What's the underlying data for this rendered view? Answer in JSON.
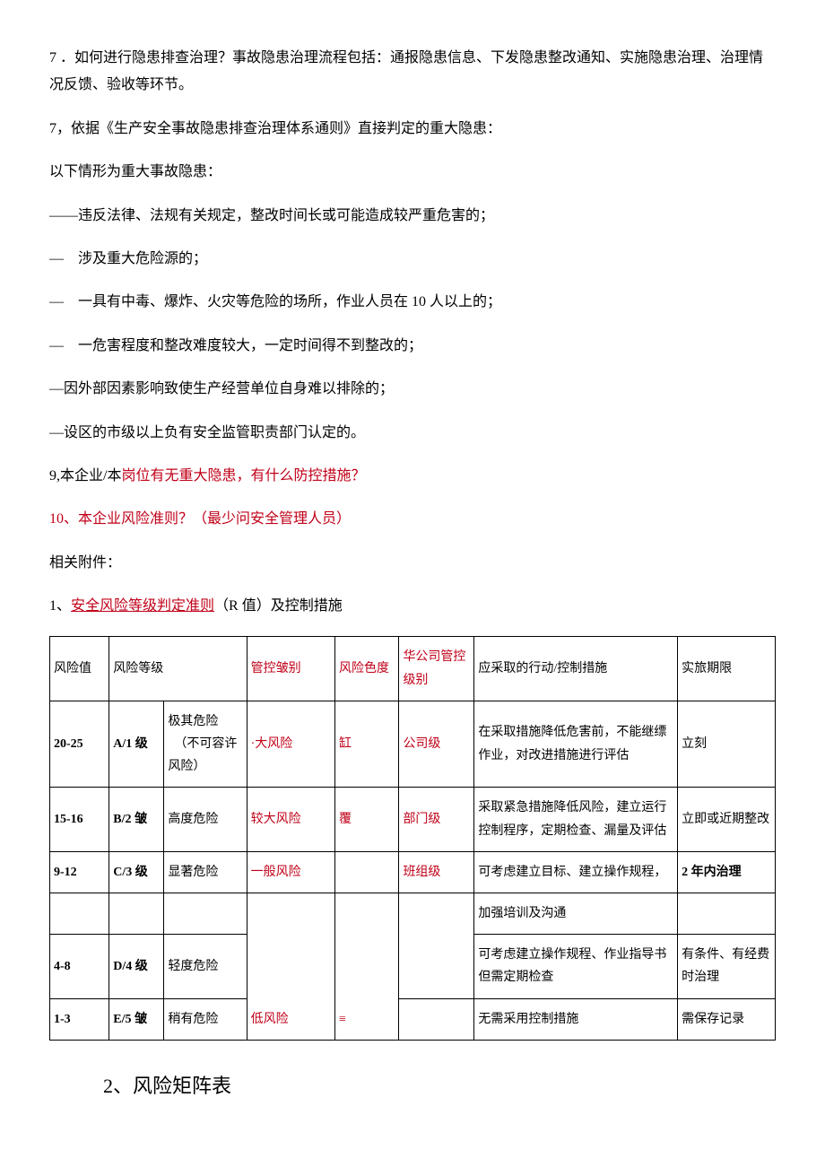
{
  "paragraphs": {
    "p1": "7 ．如何进行隐患排查治理？事故隐患治理流程包括：通报隐患信息、下发隐患整改通知、实施隐患治理、治理情况反馈、验收等环节。",
    "p2": "7，依据《生产安全事故隐患排查治理体系通则》直接判定的重大隐患：",
    "p3": "以下情形为重大事故隐患：",
    "p4": "——违反法律、法规有关规定，整改时间长或可能造成较严重危害的；",
    "p5a": "—",
    "p5b": "涉及重大危险源的；",
    "p6a": "—",
    "p6b": "一具有中毒、爆炸、火灾等危险的场所，作业人员在 10 人以上的；",
    "p7a": "—",
    "p7b": "一危害程度和整改难度较大，一定时间得不到整改的；",
    "p8": "—因外部因素影响致使生产经营单位自身难以排除的；",
    "p9": "—设区的市级以上负有安全监管职责部门认定的。",
    "p10a": "9,本企业/本",
    "p10b": "岗位有无重大隐患，有什么防控措施？",
    "p11": "10、本企业风险准则？（最少问安全管理人员）",
    "p12": "相关附件：",
    "p13a": "1、",
    "p13b": "安全风险等级判定准则",
    "p13c": "（R 值）及控制措施",
    "h2": "2、风险矩阵表"
  },
  "table": {
    "headers": {
      "h1": "风险值",
      "h2": "风险等级",
      "h3": "管控皱别",
      "h4": "风险色度",
      "h5": "华公司管控级别",
      "h6": "应采取的行动/控制措施",
      "h7": "实旅期限"
    },
    "rows": {
      "r1": {
        "val": "20-25",
        "lvl": "A/1 级",
        "lvltxt1": "极其危险",
        "lvltxt2": "（不可容许风险）",
        "ctrl": "·大风险",
        "color": "缸",
        "hq": "公司级",
        "action": "在采取措施降低危害前，不能继缥作业，对改进措施进行评估",
        "deadline": "立刻"
      },
      "r2": {
        "val": "15-16",
        "lvl": "B/2 皱",
        "lvltxt": "高度危险",
        "ctrl": "较大风险",
        "color": "覆",
        "hq": "部门级",
        "action": "采取紧急措施降低风险，建立运行控制程序，定期检查、漏量及评估",
        "deadline": "立即或近期整改"
      },
      "r3": {
        "val": "9-12",
        "lvl": "C/3 级",
        "lvltxt": "显著危险",
        "ctrl": "一般风险",
        "color": "",
        "hq": "班组级",
        "action": "可考虑建立目标、建立操作规程，",
        "deadline": "2 年内治理"
      },
      "r3b": {
        "action": "加强培训及沟通"
      },
      "r4": {
        "val": "4-8",
        "lvl": "D/4 级",
        "lvltxt": "轻度危险",
        "ctrl": "低风险",
        "color": "≡",
        "hq": "",
        "action": "可考虑建立操作规程、作业指导书但需定期检查",
        "deadline": "有条件、有经费时治理"
      },
      "r5": {
        "val": "1-3",
        "lvl": "E/5 皱",
        "lvltxt": "稍有危险",
        "hq": "",
        "action": "无需采用控制措施",
        "deadline": "需保存记录"
      }
    }
  }
}
